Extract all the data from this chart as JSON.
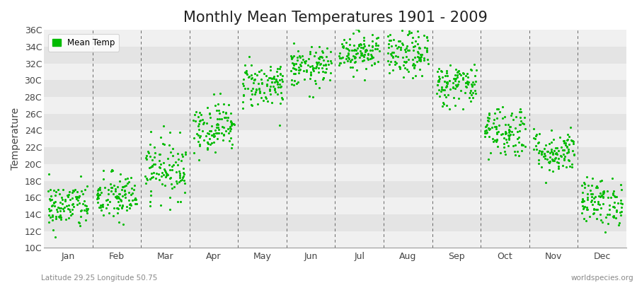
{
  "title": "Monthly Mean Temperatures 1901 - 2009",
  "ylabel": "Temperature",
  "subtitle_left": "Latitude 29.25 Longitude 50.75",
  "subtitle_right": "worldspecies.org",
  "legend_label": "Mean Temp",
  "dot_color": "#00BB00",
  "bg_color": "#FFFFFF",
  "band_color_light": "#F0F0F0",
  "band_color_dark": "#E4E4E4",
  "ytick_labels": [
    "10C",
    "12C",
    "14C",
    "16C",
    "18C",
    "20C",
    "22C",
    "24C",
    "26C",
    "28C",
    "30C",
    "32C",
    "34C",
    "36C"
  ],
  "ytick_values": [
    10,
    12,
    14,
    16,
    18,
    20,
    22,
    24,
    26,
    28,
    30,
    32,
    34,
    36
  ],
  "ylim": [
    10,
    36
  ],
  "months": [
    "Jan",
    "Feb",
    "Mar",
    "Apr",
    "May",
    "Jun",
    "Jul",
    "Aug",
    "Sep",
    "Oct",
    "Nov",
    "Dec"
  ],
  "month_means": [
    15.0,
    16.0,
    19.5,
    24.5,
    29.5,
    31.5,
    33.5,
    33.0,
    29.5,
    24.0,
    21.5,
    15.5
  ],
  "month_stds": [
    1.4,
    1.5,
    1.8,
    1.5,
    1.4,
    1.2,
    1.2,
    1.4,
    1.3,
    1.6,
    1.3,
    1.4
  ],
  "n_years": 109,
  "seed": 42,
  "dot_size": 5,
  "dashed_line_color": "#666666",
  "title_fontsize": 15,
  "axis_fontsize": 10,
  "tick_fontsize": 9
}
